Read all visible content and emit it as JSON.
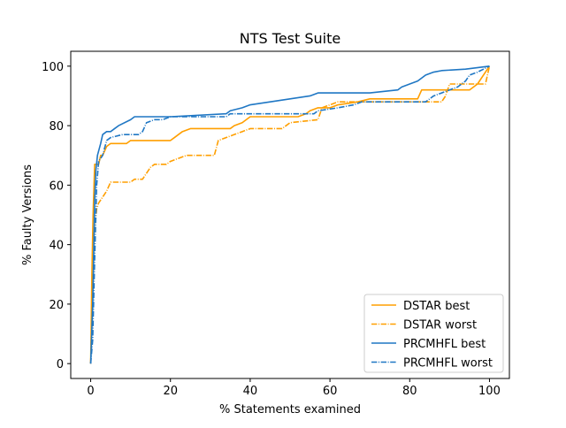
{
  "chart_data": {
    "type": "line",
    "title": "NTS Test Suite",
    "xlabel": "% Statements examined",
    "ylabel": "% Faulty Versions",
    "xlim": [
      -5,
      105
    ],
    "ylim": [
      -5,
      105
    ],
    "xticks": [
      0,
      20,
      40,
      60,
      80,
      100
    ],
    "yticks": [
      0,
      20,
      40,
      60,
      80,
      100
    ],
    "grid": false,
    "legend_position": "lower right",
    "series": [
      {
        "name": "DSTAR best",
        "color": "#ff9f00",
        "style": "solid",
        "points": [
          [
            0,
            0
          ],
          [
            0.3,
            30
          ],
          [
            0.6,
            50
          ],
          [
            1,
            67
          ],
          [
            2,
            67
          ],
          [
            2.5,
            70
          ],
          [
            3,
            70
          ],
          [
            4,
            73
          ],
          [
            5,
            74
          ],
          [
            9,
            74
          ],
          [
            10,
            75
          ],
          [
            20,
            75
          ],
          [
            21,
            76
          ],
          [
            22,
            77
          ],
          [
            23,
            78
          ],
          [
            25,
            79
          ],
          [
            35,
            79
          ],
          [
            36,
            80
          ],
          [
            38,
            81
          ],
          [
            40,
            83
          ],
          [
            52,
            83
          ],
          [
            54,
            84
          ],
          [
            55,
            85
          ],
          [
            57,
            86
          ],
          [
            60,
            86
          ],
          [
            62,
            87
          ],
          [
            67,
            88
          ],
          [
            70,
            89
          ],
          [
            82,
            89
          ],
          [
            83,
            92
          ],
          [
            95,
            92
          ],
          [
            97,
            94
          ],
          [
            100,
            100
          ]
        ]
      },
      {
        "name": "DSTAR worst",
        "color": "#ff9f00",
        "style": "dashdot",
        "points": [
          [
            0,
            0
          ],
          [
            0.5,
            25
          ],
          [
            1,
            45
          ],
          [
            1.5,
            52
          ],
          [
            2,
            54
          ],
          [
            3,
            56
          ],
          [
            4,
            58
          ],
          [
            5,
            61
          ],
          [
            10,
            61
          ],
          [
            11,
            62
          ],
          [
            13,
            62
          ],
          [
            14,
            64
          ],
          [
            15,
            66
          ],
          [
            16,
            67
          ],
          [
            19,
            67
          ],
          [
            20,
            68
          ],
          [
            22,
            69
          ],
          [
            24,
            70
          ],
          [
            31,
            70
          ],
          [
            32,
            75
          ],
          [
            34,
            76
          ],
          [
            36,
            77
          ],
          [
            38,
            78
          ],
          [
            40,
            79
          ],
          [
            48,
            79
          ],
          [
            50,
            81
          ],
          [
            57,
            82
          ],
          [
            58,
            86
          ],
          [
            60,
            87
          ],
          [
            62,
            88
          ],
          [
            78,
            88
          ],
          [
            80,
            88
          ],
          [
            88,
            88
          ],
          [
            89,
            90
          ],
          [
            90,
            94
          ],
          [
            99,
            94
          ],
          [
            100,
            100
          ]
        ]
      },
      {
        "name": "PRCMHFL best",
        "color": "#1f77c4",
        "style": "solid",
        "points": [
          [
            0,
            0
          ],
          [
            0.5,
            20
          ],
          [
            1,
            55
          ],
          [
            1.3,
            65
          ],
          [
            1.7,
            70
          ],
          [
            2.5,
            74
          ],
          [
            3,
            77
          ],
          [
            4,
            78
          ],
          [
            5,
            78
          ],
          [
            6,
            79
          ],
          [
            7,
            80
          ],
          [
            10,
            82
          ],
          [
            11,
            83
          ],
          [
            20,
            83
          ],
          [
            34,
            84
          ],
          [
            35,
            85
          ],
          [
            38,
            86
          ],
          [
            40,
            87
          ],
          [
            45,
            88
          ],
          [
            50,
            89
          ],
          [
            55,
            90
          ],
          [
            57,
            91
          ],
          [
            70,
            91
          ],
          [
            77,
            92
          ],
          [
            78,
            93
          ],
          [
            82,
            95
          ],
          [
            84,
            97
          ],
          [
            86,
            98
          ],
          [
            88,
            98.5
          ],
          [
            94,
            99
          ],
          [
            100,
            100
          ]
        ]
      },
      {
        "name": "PRCMHFL worst",
        "color": "#1f77c4",
        "style": "dashdot",
        "points": [
          [
            0,
            0
          ],
          [
            0.5,
            8
          ],
          [
            1,
            35
          ],
          [
            1.5,
            60
          ],
          [
            2,
            68
          ],
          [
            3,
            70
          ],
          [
            4,
            75
          ],
          [
            5,
            76
          ],
          [
            8,
            77
          ],
          [
            12,
            77
          ],
          [
            13,
            78
          ],
          [
            14,
            81
          ],
          [
            16,
            82
          ],
          [
            18,
            82
          ],
          [
            20,
            83
          ],
          [
            34,
            83
          ],
          [
            35,
            84
          ],
          [
            56,
            84
          ],
          [
            57,
            85
          ],
          [
            62,
            86
          ],
          [
            66,
            87
          ],
          [
            68,
            88
          ],
          [
            84,
            88
          ],
          [
            86,
            90
          ],
          [
            88,
            91
          ],
          [
            92,
            93
          ],
          [
            94,
            95
          ],
          [
            95,
            97
          ],
          [
            97,
            98
          ],
          [
            100,
            100
          ]
        ]
      }
    ]
  }
}
